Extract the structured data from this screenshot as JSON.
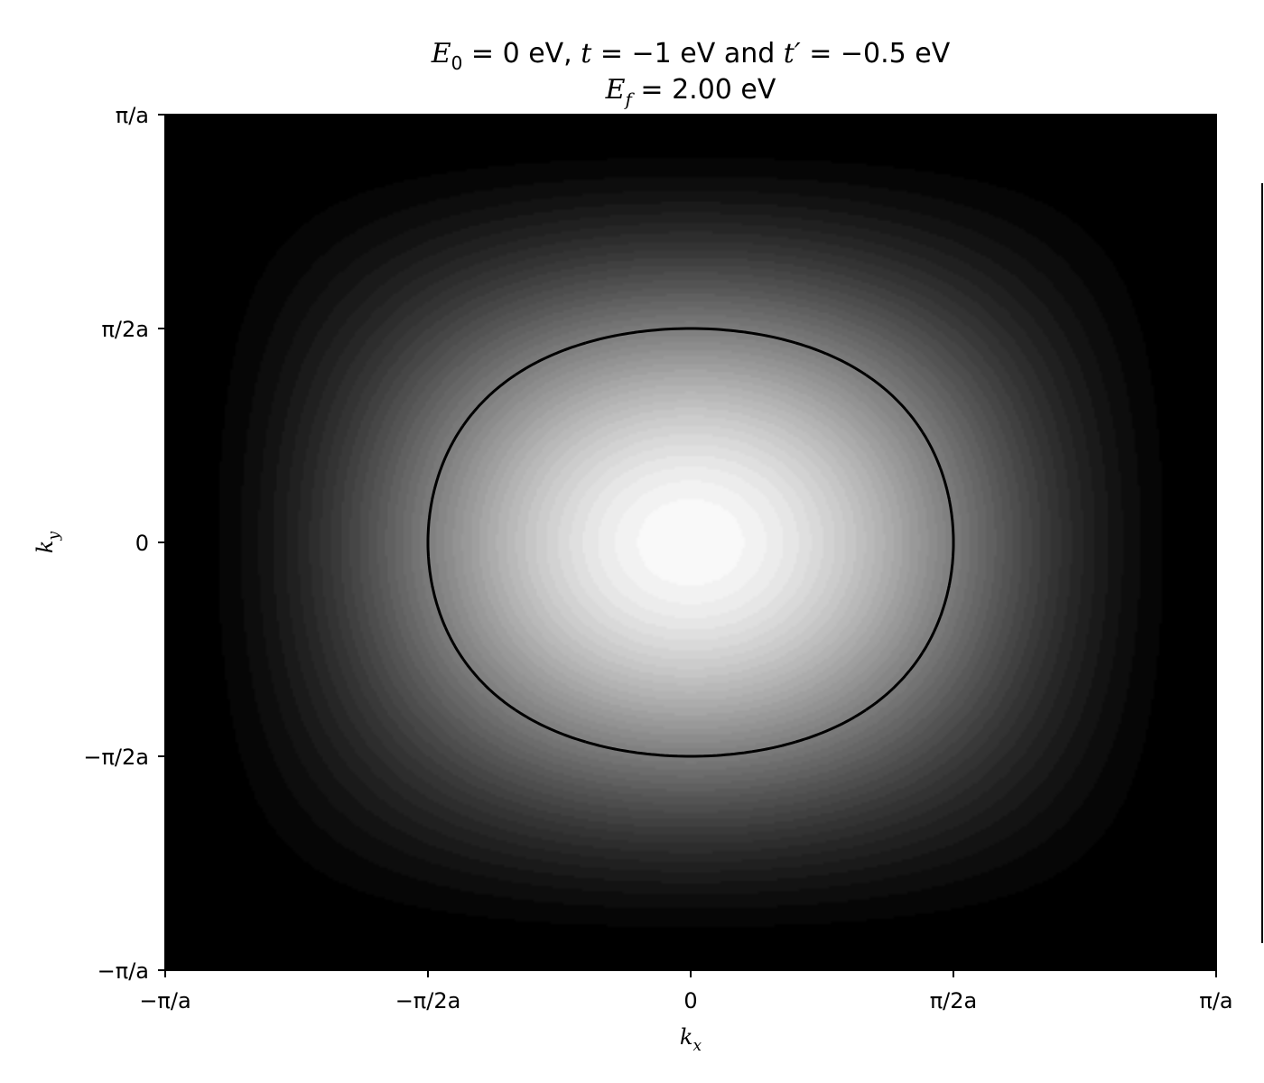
{
  "chart_data": {
    "type": "heatmap",
    "title_line1": "E₀ = 0 eV, t = −1 eV and t′ = −0.5 eV",
    "title_line2": "E_f = 2.00 eV",
    "model": {
      "E0": 0,
      "t": -1,
      "t_prime": -0.5,
      "Ef": 2.0,
      "unit": "eV"
    },
    "colormap": "gray",
    "xlabel": "k_x",
    "ylabel": "k_y",
    "xlim": [
      "−π/a",
      "π/a"
    ],
    "ylim": [
      "−π/a",
      "π/a"
    ],
    "x_ticks": [
      "−π/a",
      "−π/2a",
      "0",
      "π/2a",
      "π/a"
    ],
    "y_ticks": [
      "−π/a",
      "−π/2a",
      "0",
      "π/2a",
      "π/a"
    ],
    "contour": {
      "level_eV": 2.0,
      "style": "dashed",
      "color": "#000000"
    },
    "colorbar": "present at right edge (partially visible, no tick labels visible)"
  }
}
